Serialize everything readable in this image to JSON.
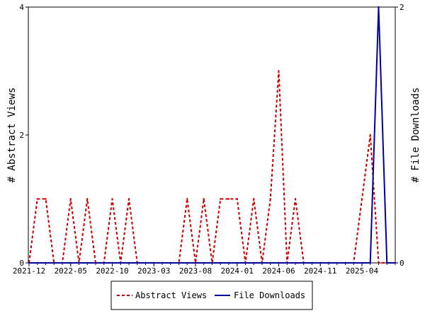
{
  "chart_data": {
    "type": "line",
    "ylabel_left": "# Abstract Views",
    "ylabel_right": "# File Downloads",
    "ylim_left": [
      0,
      4
    ],
    "ylim_right": [
      0,
      2
    ],
    "yticks_left": [
      "0",
      "2",
      "4"
    ],
    "yticks_right": [
      "0",
      "2"
    ],
    "x_tick_labels": [
      "2021-12",
      "2022-05",
      "2022-10",
      "2023-03",
      "2023-08",
      "2024-01",
      "2024-06",
      "2024-11",
      "2025-04"
    ],
    "x_months": [
      "2021-12",
      "2022-01",
      "2022-02",
      "2022-03",
      "2022-04",
      "2022-05",
      "2022-06",
      "2022-07",
      "2022-08",
      "2022-09",
      "2022-10",
      "2022-11",
      "2022-12",
      "2023-01",
      "2023-02",
      "2023-03",
      "2023-04",
      "2023-05",
      "2023-06",
      "2023-07",
      "2023-08",
      "2023-09",
      "2023-10",
      "2023-11",
      "2023-12",
      "2024-01",
      "2024-02",
      "2024-03",
      "2024-04",
      "2024-05",
      "2024-06",
      "2024-07",
      "2024-08",
      "2024-09",
      "2024-10",
      "2024-11",
      "2024-12",
      "2025-01",
      "2025-02",
      "2025-03",
      "2025-04",
      "2025-05",
      "2025-06",
      "2025-07",
      "2025-08"
    ],
    "legend_position": "bottom",
    "series": [
      {
        "name": "Abstract Views",
        "axis": "left",
        "color": "#cc0000",
        "style": "dashed",
        "values": [
          0,
          1,
          1,
          0,
          0,
          1,
          0,
          1,
          0,
          0,
          1,
          0,
          1,
          0,
          0,
          0,
          0,
          0,
          0,
          1,
          0,
          1,
          0,
          1,
          1,
          1,
          0,
          1,
          0,
          1,
          3,
          0,
          1,
          0,
          0,
          0,
          0,
          0,
          0,
          0,
          1,
          2,
          0,
          0,
          0
        ]
      },
      {
        "name": "File Downloads",
        "axis": "right",
        "color": "#000099",
        "style": "solid",
        "values": [
          0,
          0,
          0,
          0,
          0,
          0,
          0,
          0,
          0,
          0,
          0,
          0,
          0,
          0,
          0,
          0,
          0,
          0,
          0,
          0,
          0,
          0,
          0,
          0,
          0,
          0,
          0,
          0,
          0,
          0,
          0,
          0,
          0,
          0,
          0,
          0,
          0,
          0,
          0,
          0,
          0,
          0,
          2,
          0,
          0
        ]
      }
    ]
  }
}
